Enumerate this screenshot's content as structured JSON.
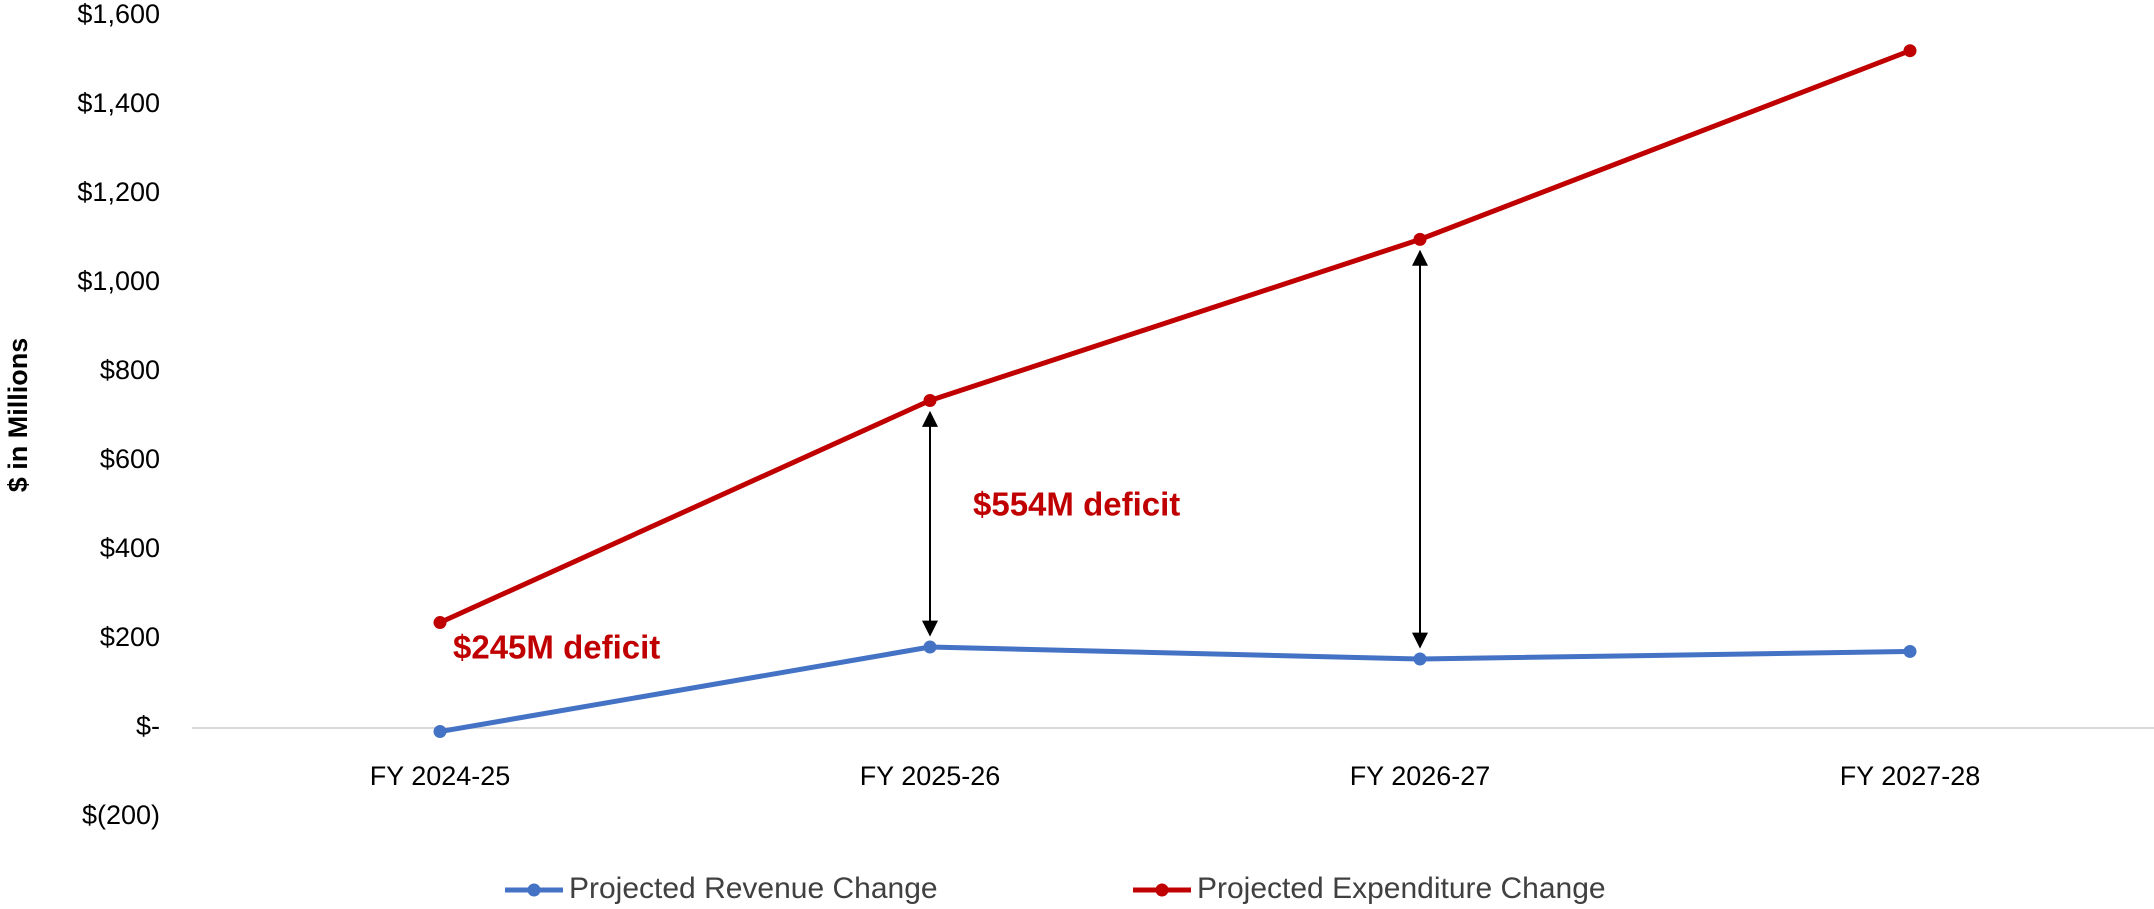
{
  "chart_data": {
    "type": "line",
    "y_axis_label": "$ in Millions",
    "categories": [
      "FY 2024-25",
      "FY 2025-26",
      "FY 2026-27",
      "FY 2027-28"
    ],
    "series": [
      {
        "name": "Projected Revenue Change",
        "color": "#4472c4",
        "values": [
          -8,
          182,
          155,
          172
        ]
      },
      {
        "name": "Projected Expenditure Change",
        "color": "#c00000",
        "values": [
          237,
          736,
          1098,
          1522
        ]
      }
    ],
    "ylim": [
      -200,
      1600
    ],
    "yticks": [
      {
        "value": -200,
        "label": "$(200)"
      },
      {
        "value": 0,
        "label": "$-"
      },
      {
        "value": 200,
        "label": "$200"
      },
      {
        "value": 400,
        "label": "$400"
      },
      {
        "value": 600,
        "label": "$600"
      },
      {
        "value": 800,
        "label": "$800"
      },
      {
        "value": 1000,
        "label": "$1,000"
      },
      {
        "value": 1200,
        "label": "$1,200"
      },
      {
        "value": 1400,
        "label": "$1,400"
      },
      {
        "value": 1600,
        "label": "$1,600"
      }
    ],
    "annotations": [
      "$245M deficit",
      "$554M deficit"
    ],
    "annotation_color": "#c00000",
    "legend": "bottom"
  }
}
